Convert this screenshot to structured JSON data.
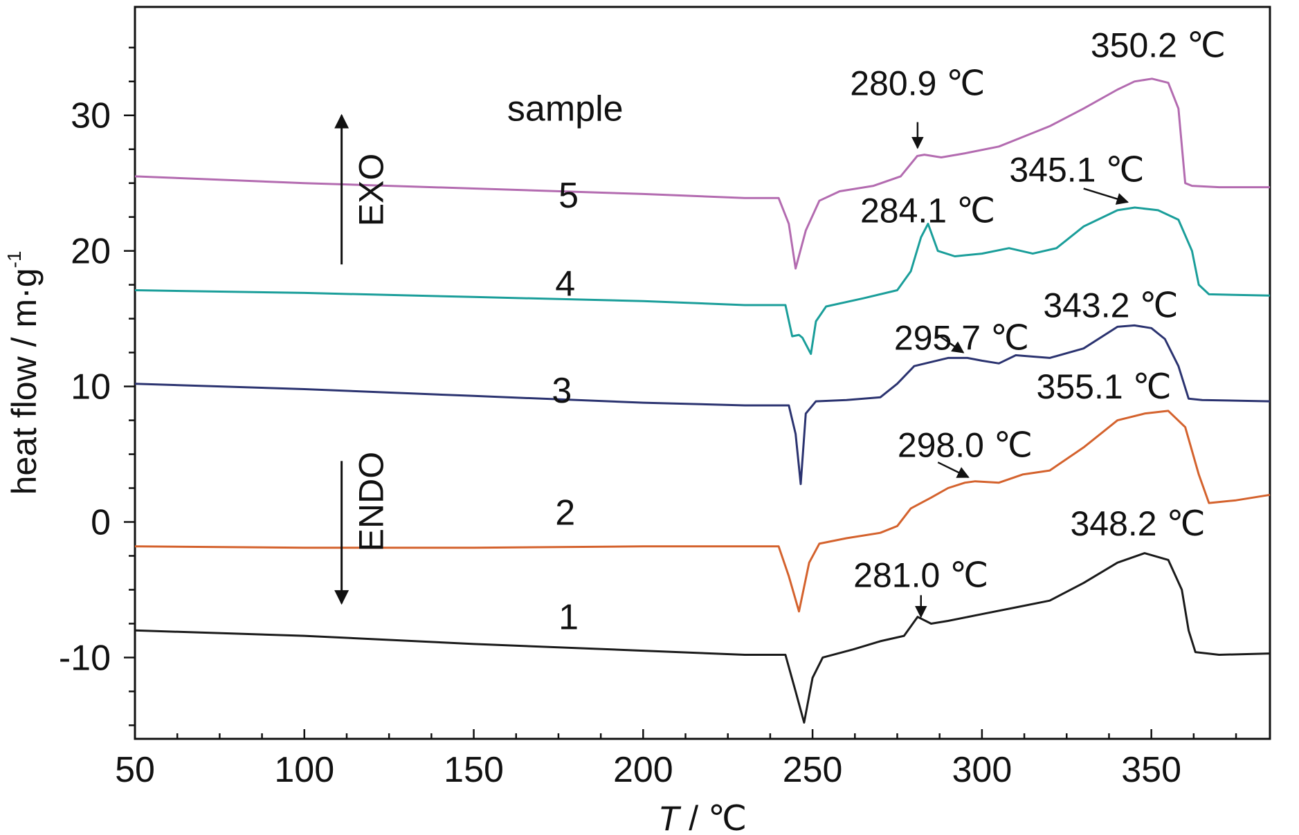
{
  "chart_data": {
    "type": "line",
    "xlabel_italic": "T",
    "xlabel_rest": " / ℃",
    "ylabel": "heat flow / m·g",
    "ylabel_sup": "-1",
    "xlim": [
      50,
      385
    ],
    "ylim": [
      -16,
      38
    ],
    "x_ticks": [
      50,
      100,
      150,
      200,
      250,
      300,
      350
    ],
    "x_tick_labels": [
      "50",
      "100",
      "150",
      "200",
      "250",
      "300",
      "350"
    ],
    "y_ticks": [
      -10,
      0,
      10,
      20,
      30
    ],
    "y_tick_labels": [
      "-10",
      "0",
      "10",
      "20",
      "30"
    ],
    "legend_title": "sample",
    "direction_labels": {
      "exo": "EXO",
      "endo": "ENDO"
    },
    "series": [
      {
        "name": "1",
        "color": "#1a1a1a",
        "label_at": [
          178,
          -7.9
        ],
        "points": [
          [
            50,
            -8
          ],
          [
            100,
            -8.4
          ],
          [
            150,
            -9
          ],
          [
            200,
            -9.5
          ],
          [
            230,
            -9.8
          ],
          [
            242,
            -9.8
          ],
          [
            245,
            -12.5
          ],
          [
            247.5,
            -14.8
          ],
          [
            250,
            -11.5
          ],
          [
            253,
            -10
          ],
          [
            262,
            -9.4
          ],
          [
            270,
            -8.8
          ],
          [
            277,
            -8.4
          ],
          [
            281,
            -7
          ],
          [
            285,
            -7.5
          ],
          [
            290,
            -7.3
          ],
          [
            300,
            -6.8
          ],
          [
            310,
            -6.3
          ],
          [
            320,
            -5.8
          ],
          [
            330,
            -4.5
          ],
          [
            340,
            -3
          ],
          [
            348,
            -2.3
          ],
          [
            355,
            -2.8
          ],
          [
            359,
            -5
          ],
          [
            361,
            -8
          ],
          [
            363,
            -9.6
          ],
          [
            370,
            -9.8
          ],
          [
            385,
            -9.7
          ]
        ]
      },
      {
        "name": "2",
        "color": "#d4622d",
        "label_at": [
          177,
          -0.2
        ],
        "points": [
          [
            50,
            -1.8
          ],
          [
            100,
            -1.9
          ],
          [
            150,
            -1.9
          ],
          [
            200,
            -1.8
          ],
          [
            230,
            -1.8
          ],
          [
            240,
            -1.8
          ],
          [
            243,
            -4
          ],
          [
            246,
            -6.6
          ],
          [
            249,
            -3
          ],
          [
            252,
            -1.6
          ],
          [
            260,
            -1.2
          ],
          [
            270,
            -0.8
          ],
          [
            275,
            -0.3
          ],
          [
            279,
            1
          ],
          [
            285,
            1.8
          ],
          [
            290,
            2.5
          ],
          [
            295,
            2.9
          ],
          [
            298,
            3
          ],
          [
            305,
            2.9
          ],
          [
            312,
            3.5
          ],
          [
            320,
            3.8
          ],
          [
            330,
            5.5
          ],
          [
            340,
            7.5
          ],
          [
            348,
            8
          ],
          [
            355,
            8.2
          ],
          [
            360,
            7
          ],
          [
            364,
            3.5
          ],
          [
            367,
            1.4
          ],
          [
            375,
            1.6
          ],
          [
            385,
            2
          ]
        ]
      },
      {
        "name": "3",
        "color": "#2b3370",
        "label_at": [
          176,
          8.8
        ],
        "points": [
          [
            50,
            10.2
          ],
          [
            100,
            9.8
          ],
          [
            150,
            9.3
          ],
          [
            200,
            8.8
          ],
          [
            230,
            8.6
          ],
          [
            243,
            8.6
          ],
          [
            245,
            6.5
          ],
          [
            246.5,
            2.8
          ],
          [
            248,
            8
          ],
          [
            251,
            8.9
          ],
          [
            260,
            9
          ],
          [
            270,
            9.2
          ],
          [
            275,
            10.2
          ],
          [
            280,
            11.5
          ],
          [
            285,
            11.8
          ],
          [
            290,
            12.1
          ],
          [
            295.7,
            12.1
          ],
          [
            300,
            11.9
          ],
          [
            305,
            11.7
          ],
          [
            310,
            12.3
          ],
          [
            320,
            12.1
          ],
          [
            330,
            12.8
          ],
          [
            340,
            14.4
          ],
          [
            345,
            14.5
          ],
          [
            350,
            14.3
          ],
          [
            354,
            13.5
          ],
          [
            358,
            11.5
          ],
          [
            361,
            9.1
          ],
          [
            365,
            9
          ],
          [
            385,
            8.9
          ]
        ]
      },
      {
        "name": "4",
        "color": "#1a9e9a",
        "label_at": [
          177,
          16.7
        ],
        "points": [
          [
            50,
            17.1
          ],
          [
            100,
            16.9
          ],
          [
            150,
            16.6
          ],
          [
            200,
            16.3
          ],
          [
            230,
            16
          ],
          [
            242,
            16
          ],
          [
            244,
            13.7
          ],
          [
            246,
            13.8
          ],
          [
            247,
            13.6
          ],
          [
            249.5,
            12.4
          ],
          [
            251,
            14.8
          ],
          [
            254,
            15.9
          ],
          [
            265,
            16.5
          ],
          [
            275,
            17.1
          ],
          [
            279,
            18.5
          ],
          [
            282,
            21
          ],
          [
            284.1,
            22
          ],
          [
            287,
            20
          ],
          [
            292,
            19.6
          ],
          [
            300,
            19.8
          ],
          [
            308,
            20.2
          ],
          [
            315,
            19.8
          ],
          [
            322,
            20.2
          ],
          [
            330,
            21.8
          ],
          [
            340,
            23
          ],
          [
            345.1,
            23.2
          ],
          [
            352,
            23
          ],
          [
            358,
            22.3
          ],
          [
            362,
            20
          ],
          [
            364,
            17.5
          ],
          [
            367,
            16.8
          ],
          [
            385,
            16.7
          ]
        ]
      },
      {
        "name": "5",
        "color": "#b36bb0",
        "label_at": [
          178,
          23.2
        ],
        "points": [
          [
            50,
            25.5
          ],
          [
            100,
            25
          ],
          [
            150,
            24.6
          ],
          [
            200,
            24.2
          ],
          [
            230,
            23.9
          ],
          [
            240,
            23.9
          ],
          [
            243,
            22
          ],
          [
            245,
            18.7
          ],
          [
            248,
            21.5
          ],
          [
            252,
            23.7
          ],
          [
            258,
            24.4
          ],
          [
            268,
            24.8
          ],
          [
            276,
            25.5
          ],
          [
            280.9,
            27
          ],
          [
            283,
            27.1
          ],
          [
            288,
            26.9
          ],
          [
            295,
            27.2
          ],
          [
            305,
            27.7
          ],
          [
            312,
            28.4
          ],
          [
            320,
            29.2
          ],
          [
            330,
            30.5
          ],
          [
            340,
            31.9
          ],
          [
            345,
            32.5
          ],
          [
            350.2,
            32.7
          ],
          [
            355,
            32.4
          ],
          [
            358,
            30.5
          ],
          [
            360,
            25
          ],
          [
            362,
            24.8
          ],
          [
            370,
            24.7
          ],
          [
            385,
            24.7
          ]
        ]
      }
    ],
    "annotations": [
      {
        "text": "280.9 ℃",
        "text_at": [
          281,
          31.5
        ],
        "anchor": "middle",
        "arrow_from": [
          281,
          29.5
        ],
        "arrow_to": [
          281,
          27.6
        ]
      },
      {
        "text": "350.2 ℃",
        "text_at": [
          352,
          34.3
        ],
        "anchor": "middle"
      },
      {
        "text": "284.1 ℃",
        "text_at": [
          284,
          22.1
        ],
        "anchor": "middle"
      },
      {
        "text": "345.1 ℃",
        "text_at": [
          328,
          25.1
        ],
        "anchor": "middle",
        "arrow_from": [
          330,
          24.6
        ],
        "arrow_to": [
          343,
          23.6
        ]
      },
      {
        "text": "295.7 ℃",
        "text_at": [
          294,
          12.7
        ],
        "anchor": "middle",
        "arrow_from": [
          287,
          13.8
        ],
        "arrow_to": [
          294.5,
          12.5
        ]
      },
      {
        "text": "343.2 ℃",
        "text_at": [
          338,
          15.1
        ],
        "anchor": "middle"
      },
      {
        "text": "355.1 ℃",
        "text_at": [
          336,
          9.1
        ],
        "anchor": "middle"
      },
      {
        "text": "298.0 ℃",
        "text_at": [
          295,
          4.8
        ],
        "anchor": "middle",
        "arrow_from": [
          287,
          4.4
        ],
        "arrow_to": [
          296,
          3.3
        ]
      },
      {
        "text": "348.2 ℃",
        "text_at": [
          346,
          -1
        ],
        "anchor": "middle"
      },
      {
        "text": "281.0 ℃",
        "text_at": [
          282,
          -4.8
        ],
        "anchor": "middle",
        "arrow_from": [
          282,
          -5.4
        ],
        "arrow_to": [
          282,
          -7
        ]
      }
    ],
    "legend_title_at": [
      177,
      29.6
    ],
    "exo_arrow": {
      "x": 111,
      "from": 19,
      "to": 30,
      "label_y": 24.5
    },
    "endo_arrow": {
      "x": 111,
      "from": 4.5,
      "to": -6,
      "label_y": 1.5
    },
    "grid": false
  }
}
